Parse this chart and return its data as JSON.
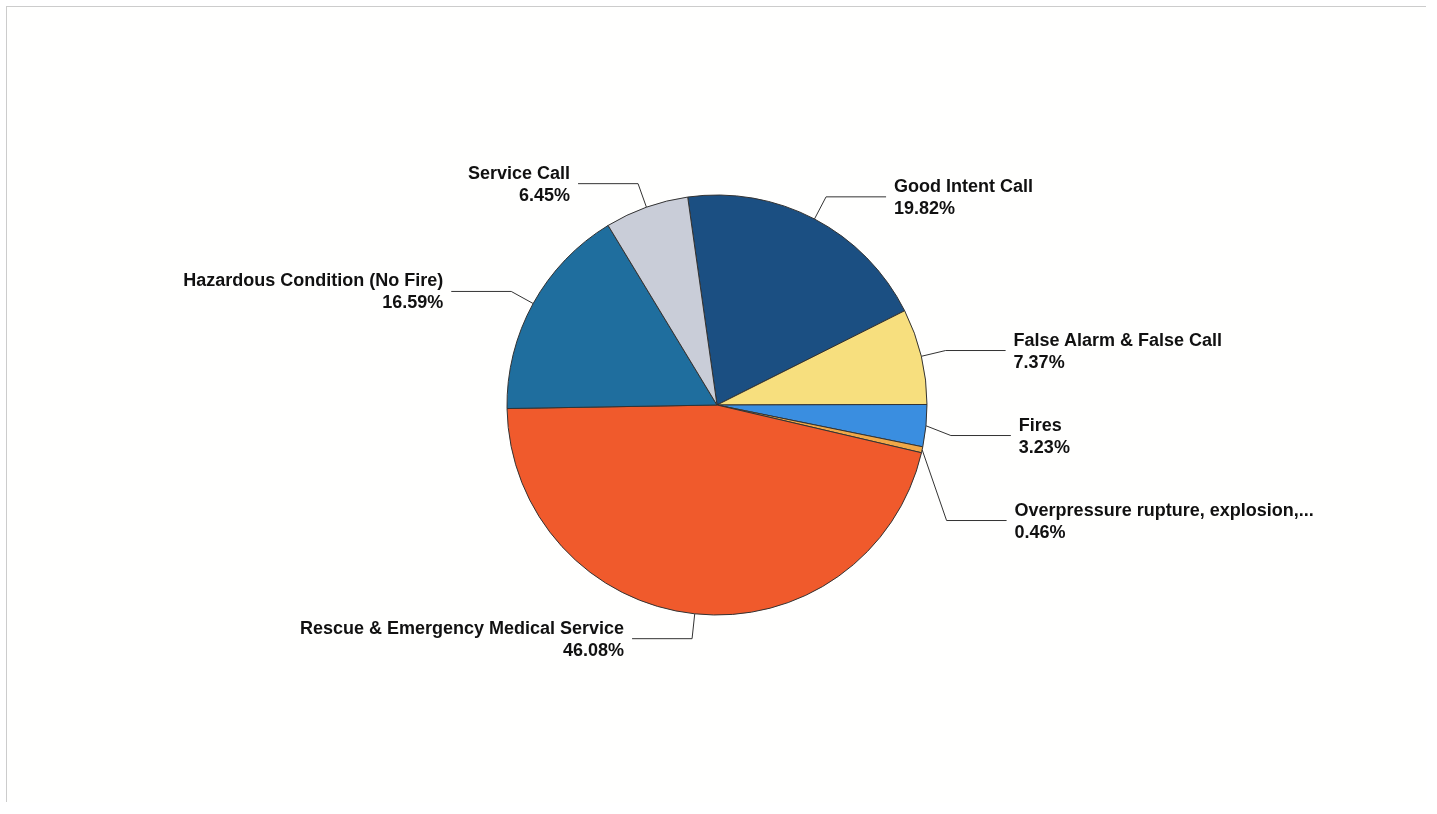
{
  "chart_data": {
    "type": "pie",
    "categories": [
      "Good Intent Call",
      "False Alarm & False Call",
      "Fires",
      "Overpressure rupture, explosion,...",
      "Rescue & Emergency Medical Service",
      "Hazardous Condition (No Fire)",
      "Service Call"
    ],
    "values": [
      19.82,
      7.37,
      3.23,
      0.46,
      46.08,
      16.59,
      6.45
    ],
    "colors": [
      "#1b4f82",
      "#f7df7e",
      "#3a8ee0",
      "#f0a848",
      "#f05a2c",
      "#1f6e9e",
      "#c9cdd8"
    ],
    "value_labels": [
      "19.82%",
      "7.37%",
      "3.23%",
      "0.46%",
      "46.08%",
      "16.59%",
      "6.45%"
    ]
  }
}
